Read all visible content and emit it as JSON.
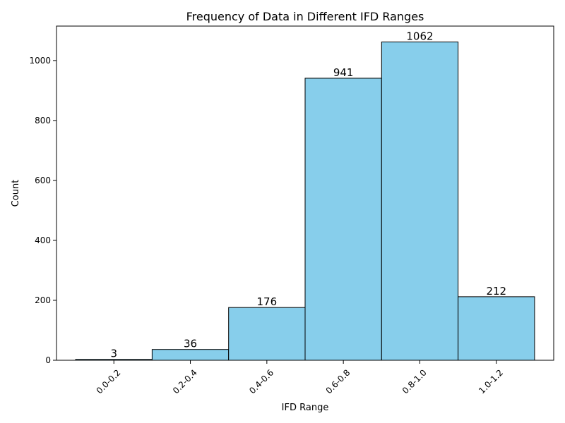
{
  "chart_data": {
    "type": "bar",
    "title": "Frequency of Data in Different IFD Ranges",
    "xlabel": "IFD Range",
    "ylabel": "Count",
    "categories": [
      "0.0-0.2",
      "0.2-0.4",
      "0.4-0.6",
      "0.6-0.8",
      "0.8-1.0",
      "1.0-1.2"
    ],
    "values": [
      3,
      36,
      176,
      941,
      1062,
      212
    ],
    "data_labels": [
      "3",
      "36",
      "176",
      "941",
      "1062",
      "212"
    ],
    "ylim": [
      0,
      1115
    ],
    "yticks": [
      0,
      200,
      400,
      600,
      800,
      1000
    ],
    "ytick_labels": [
      "0",
      "200",
      "400",
      "600",
      "800",
      "1000"
    ],
    "bar_color": "#87ceeb",
    "bar_edge_color": "#000000",
    "grid": false,
    "legend": "none",
    "xtick_rotation": "45"
  }
}
